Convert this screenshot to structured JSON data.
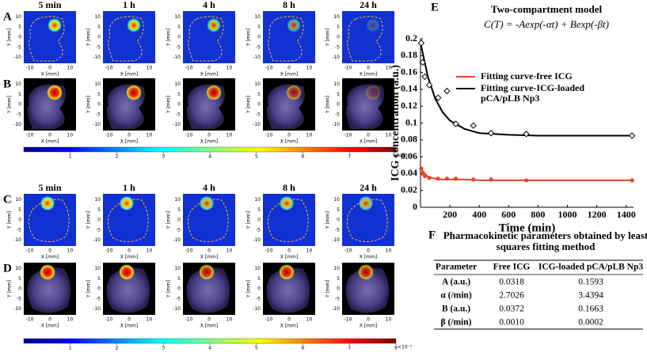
{
  "figure": {
    "panel_letters": [
      "A",
      "B",
      "C",
      "D",
      "E",
      "F"
    ],
    "imaging": {
      "times": [
        "5 min",
        "1 h",
        "4 h",
        "8 h",
        "24 h"
      ],
      "y_ticks": [
        10,
        5,
        0,
        -5,
        -10
      ],
      "x_ticks": [
        -10,
        0,
        10
      ],
      "y_label": "Y [mm]",
      "x_label": "X [mm]"
    },
    "colorbar": {
      "range": [
        0,
        8
      ],
      "ticks": [
        1,
        2,
        3,
        4,
        5,
        6,
        7,
        8
      ],
      "exponent_label": "×10⁻⁵"
    }
  },
  "chart_data": {
    "type": "line",
    "title": "Two-compartment model",
    "subtitle": "C(T) = -Aexp(-αt) + Bexp(-βt)",
    "x_label": "Time (min)",
    "y_label": "ICG concentration (a.u.)",
    "xlim": [
      0,
      1450
    ],
    "ylim": [
      0,
      0.2
    ],
    "xticks": [
      200,
      400,
      600,
      800,
      1000,
      1200,
      1400
    ],
    "yticks": [
      0,
      0.02,
      0.04,
      0.06,
      0.08,
      0.1,
      0.12,
      0.14,
      0.16,
      0.18,
      0.2
    ],
    "legend": "upper right",
    "series": [
      {
        "name": "Fitting curve-free ICG",
        "color": "#e8442a",
        "x": [
          0,
          50,
          100,
          150,
          200,
          300,
          400,
          600,
          800,
          1000,
          1200,
          1440
        ],
        "values": [
          0.046,
          0.036,
          0.034,
          0.033,
          0.033,
          0.033,
          0.032,
          0.032,
          0.032,
          0.032,
          0.032,
          0.032
        ]
      },
      {
        "name": "Fitting curve-ICG-loaded pCA/pLB Np3",
        "color": "#000000",
        "x": [
          0,
          50,
          100,
          150,
          200,
          300,
          400,
          600,
          800,
          1000,
          1200,
          1440
        ],
        "values": [
          0.195,
          0.155,
          0.129,
          0.113,
          0.103,
          0.093,
          0.088,
          0.086,
          0.085,
          0.085,
          0.085,
          0.085
        ]
      }
    ],
    "points": [
      {
        "color": "#e8442a",
        "marker": "circle",
        "x": [
          5,
          15,
          30,
          60,
          120,
          180,
          240,
          360,
          480,
          720,
          1440
        ],
        "values": [
          0.046,
          0.04,
          0.037,
          0.035,
          0.034,
          0.034,
          0.034,
          0.033,
          0.033,
          0.032,
          0.032
        ]
      },
      {
        "color": "#000000",
        "marker": "diamond",
        "x": [
          5,
          15,
          30,
          60,
          120,
          180,
          240,
          360,
          480,
          720,
          1440
        ],
        "values": [
          0.195,
          0.172,
          0.155,
          0.145,
          0.13,
          0.138,
          0.099,
          0.097,
          0.088,
          0.087,
          0.085
        ]
      }
    ]
  },
  "table": {
    "title": "Pharmacokinetic parameters obtained by least squares fitting method",
    "header": [
      "Parameter",
      "Free ICG",
      "ICG-loaded pCA/pLB Np3"
    ],
    "rows": [
      [
        "A (a.u.)",
        "0.0318",
        "0.1593"
      ],
      [
        "α (/min)",
        "2.7026",
        "3.4394"
      ],
      [
        "B (a.u.)",
        "0.0372",
        "0.1663"
      ],
      [
        "β (/min)",
        "0.0010",
        "0.0002"
      ]
    ]
  }
}
